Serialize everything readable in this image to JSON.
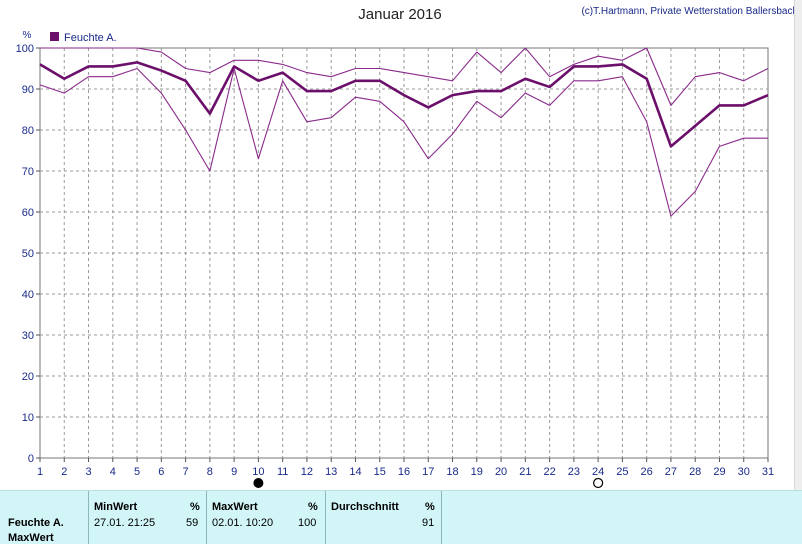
{
  "header": {
    "title": "Januar 2016",
    "credit": "(c)T.Hartmann, Private Wetterstation Ballersbach"
  },
  "chart_data": {
    "type": "line",
    "title": "Januar 2016",
    "ylabel": "%",
    "xlim": [
      1,
      31
    ],
    "ylim": [
      0,
      100
    ],
    "x": [
      1,
      2,
      3,
      4,
      5,
      6,
      7,
      8,
      9,
      10,
      11,
      12,
      13,
      14,
      15,
      16,
      17,
      18,
      19,
      20,
      21,
      22,
      23,
      24,
      25,
      26,
      27,
      28,
      29,
      30,
      31
    ],
    "yticks": [
      0,
      10,
      20,
      30,
      40,
      50,
      60,
      70,
      80,
      90,
      100
    ],
    "grid": true,
    "legend": "top-left",
    "series": [
      {
        "name": "Feuchte A.",
        "role": "mean",
        "color": "#6b0f6b",
        "values": [
          96,
          92.5,
          95.5,
          95.5,
          96.5,
          94.5,
          92,
          84,
          95.5,
          92,
          94,
          89.5,
          89.5,
          92,
          92,
          88.5,
          85.5,
          88.5,
          89.5,
          89.5,
          92.5,
          90.5,
          95.5,
          95.5,
          96,
          92.5,
          76,
          81,
          86,
          86,
          88.5
        ]
      },
      {
        "role": "max",
        "color": "#8a2a8a",
        "values": [
          100,
          100,
          100,
          100,
          100,
          99,
          95,
          94,
          97,
          97,
          96,
          94,
          93,
          95,
          95,
          94,
          93,
          92,
          99,
          94,
          100,
          93,
          96,
          98,
          97,
          100,
          86,
          93,
          94,
          92,
          95
        ]
      },
      {
        "role": "min",
        "color": "#8a2a8a",
        "values": [
          91,
          89,
          93,
          93,
          95,
          89,
          80,
          70,
          95,
          73,
          92,
          82,
          83,
          88,
          87,
          82,
          73,
          79,
          87,
          83,
          89,
          86,
          92,
          92,
          93,
          82,
          59,
          65,
          76,
          78,
          78
        ]
      }
    ],
    "markers": [
      {
        "x": 10,
        "symbol": "filled-circle",
        "name": "new-moon"
      },
      {
        "x": 24,
        "symbol": "open-circle",
        "name": "full-moon"
      }
    ]
  },
  "stats": {
    "row_label": "Feuchte A.",
    "row_label_2": "MaxWert",
    "min_header": "MinWert",
    "min_unit": "%",
    "min_date": "27.01.  21:25",
    "min_value": "59",
    "max_header": "MaxWert",
    "max_unit": "%",
    "max_date": "02.01.  10:20",
    "max_value": "100",
    "avg_header": "Durchschnitt",
    "avg_unit": "%",
    "avg_value": "91"
  }
}
